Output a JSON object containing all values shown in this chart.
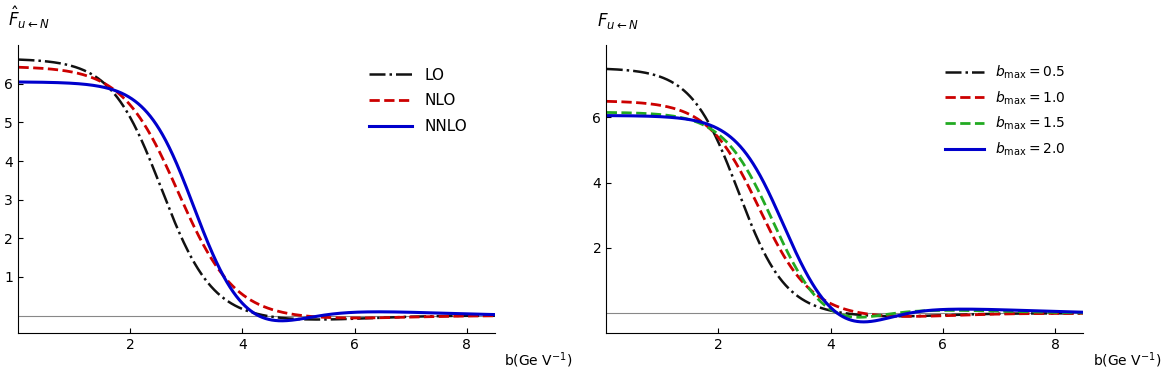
{
  "xlim": [
    0,
    8.5
  ],
  "ylim_left": [
    -0.45,
    7.0
  ],
  "ylim_right": [
    -0.6,
    8.2
  ],
  "xticks": [
    2,
    4,
    6,
    8
  ],
  "yticks_left": [
    1,
    2,
    3,
    4,
    5,
    6
  ],
  "yticks_right": [
    2,
    4,
    6
  ],
  "bg_color": "#ffffff",
  "left_legend": [
    {
      "label": "LO",
      "color": "#111111",
      "ls": "dashdot",
      "lw": 1.8
    },
    {
      "label": "NLO",
      "color": "#cc0000",
      "ls": "dashed",
      "lw": 2.0
    },
    {
      "label": "NNLO",
      "color": "#0000cc",
      "ls": "solid",
      "lw": 2.2
    }
  ],
  "right_legend": [
    {
      "label": "b_max=0.5",
      "color": "#111111",
      "ls": "dashdot",
      "lw": 1.8
    },
    {
      "label": "b_max=1.0",
      "color": "#cc0000",
      "ls": "dashed",
      "lw": 2.0
    },
    {
      "label": "b_max=1.5",
      "color": "#22aa22",
      "ls": "dashed",
      "lw": 2.0
    },
    {
      "label": "b_max=2.0",
      "color": "#0000cc",
      "ls": "solid",
      "lw": 2.2
    }
  ]
}
